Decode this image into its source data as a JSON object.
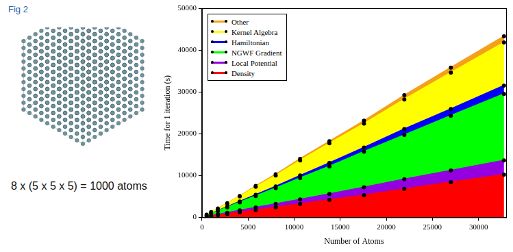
{
  "figure_label": "Fig 2",
  "caption": "8 x (5 x 5 x 5) = 1000 atoms",
  "chart_data": {
    "type": "area",
    "stacked": true,
    "x_label": "Number of Atoms",
    "y_label": "Time for 1 iteration (s)",
    "x": [
      512,
      1000,
      1728,
      2744,
      4096,
      5832,
      8000,
      10648,
      13824,
      17576,
      21952,
      27000,
      32768
    ],
    "series": [
      {
        "name": "Other",
        "color": "#f5a01a",
        "values": [
          30,
          50,
          50,
          100,
          100,
          200,
          300,
          400,
          500,
          700,
          1000,
          1200,
          1500
        ]
      },
      {
        "name": "Kernel Algebra",
        "color": "#ffff00",
        "values": [
          120,
          250,
          450,
          750,
          1200,
          1900,
          2600,
          3600,
          4700,
          5700,
          7100,
          8700,
          10300
        ]
      },
      {
        "name": "Hamiltonian",
        "color": "#0000ff",
        "values": [
          30,
          50,
          100,
          150,
          200,
          300,
          400,
          600,
          800,
          1000,
          1400,
          1600,
          2000
        ]
      },
      {
        "name": "NGWF Gradient",
        "color": "#00ff00",
        "values": [
          250,
          500,
          800,
          1300,
          1950,
          2750,
          3800,
          5100,
          6600,
          8500,
          10600,
          13100,
          15900
        ]
      },
      {
        "name": "Local Potential",
        "color": "#9400e0",
        "values": [
          50,
          100,
          200,
          300,
          450,
          600,
          800,
          1100,
          1400,
          1900,
          2300,
          2800,
          3400
        ]
      },
      {
        "name": "Density",
        "color": "#ff0000",
        "values": [
          150,
          300,
          500,
          800,
          1200,
          1750,
          2400,
          3200,
          4200,
          5300,
          6800,
          8400,
          10200
        ]
      }
    ],
    "xlim": [
      0,
      33000
    ],
    "xticks": [
      0,
      5000,
      10000,
      15000,
      20000,
      25000,
      30000
    ],
    "ylim": [
      0,
      50000
    ],
    "yticks": [
      0,
      10000,
      20000,
      30000,
      40000,
      50000
    ],
    "grid": false,
    "legend": "upper left",
    "marker": "circle"
  }
}
